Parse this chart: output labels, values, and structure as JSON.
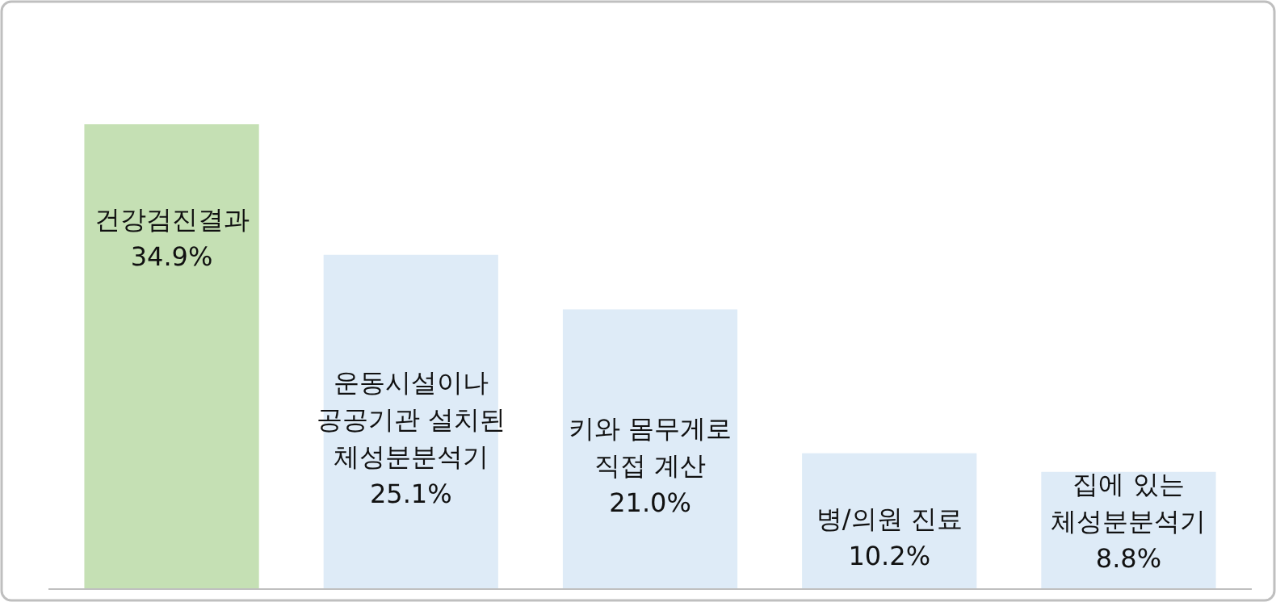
{
  "chart_data": {
    "type": "bar",
    "categories": [
      "건강검진결과",
      "운동시설이나\n공공기관 설치된\n체성분분석기",
      "키와 몸무게로\n직접 계산",
      "병/의원 진료",
      "집에 있는\n체성분분석기"
    ],
    "values": [
      34.9,
      25.1,
      21.0,
      10.2,
      8.8
    ],
    "colors": [
      "#c5e0b4",
      "#deebf7",
      "#deebf7",
      "#deebf7",
      "#deebf7"
    ],
    "value_labels": [
      "34.9%",
      "25.1%",
      "21.0%",
      "10.2%",
      "8.8%"
    ]
  }
}
